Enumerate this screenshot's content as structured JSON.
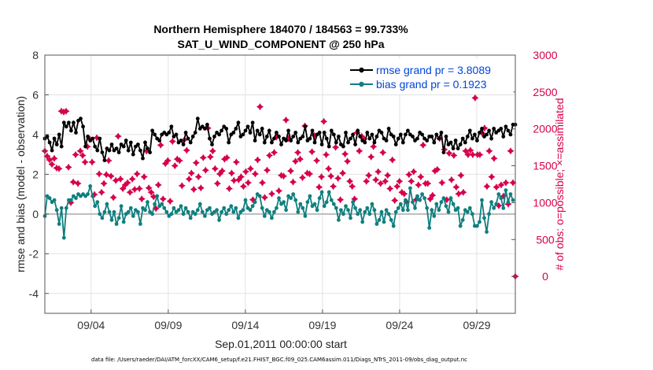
{
  "chart_data": {
    "type": "line",
    "title": "Northern Hemisphere 184070 / 184563 = 99.733%",
    "subtitle": "SAT_U_WIND_COMPONENT @ 250 hPa",
    "xlabel": "Sep.01,2011 00:00:00 start",
    "ylabel": "rmse and bias (model - observation)",
    "y2label": "# of obs: o=possible; ×=assimilated",
    "footnote": "data file: /Users/raeder/DAI/ATM_forcXX/CAM6_setup/f.e21.FHIST_BGC.f09_025.CAM6assim.011/Diags_NTrS_2011-09/obs_diag_output.nc",
    "xlim": [
      0,
      30.5
    ],
    "ylim": [
      -5,
      8
    ],
    "y2lim": [
      -500,
      3000
    ],
    "x_ticks": [
      {
        "value": 3,
        "label": "09/04"
      },
      {
        "value": 8,
        "label": "09/09"
      },
      {
        "value": 13,
        "label": "09/14"
      },
      {
        "value": 18,
        "label": "09/19"
      },
      {
        "value": 23,
        "label": "09/24"
      },
      {
        "value": 28,
        "label": "09/29"
      }
    ],
    "y_ticks": [
      -4,
      -2,
      0,
      2,
      4,
      6,
      8
    ],
    "y2_ticks": [
      0,
      500,
      1000,
      1500,
      2000,
      2500,
      3000
    ],
    "grid": true,
    "legend_position": "top-right",
    "zero_line": true,
    "colors": {
      "rmse": "#000000",
      "bias": "#0f7f7f",
      "obs": "#d6004c",
      "zero_line": "#bbbbbb",
      "grid": "#e2e2e2",
      "legend_text": "#0044dd"
    },
    "series": [
      {
        "name": "rmse grand pr = 3.8089",
        "axis": "left",
        "marker": "circle",
        "values": [
          3.8,
          3.9,
          3.6,
          3.2,
          3.8,
          3.5,
          4.0,
          3.4,
          4.6,
          4.4,
          4.6,
          4.2,
          4.6,
          4.1,
          4.7,
          4.8,
          4.4,
          3.4,
          3.9,
          3.7,
          3.8,
          3.4,
          3.2,
          3.8,
          3.1,
          2.7,
          3.3,
          3.2,
          3.5,
          3.2,
          3.3,
          3.1,
          3.5,
          3.4,
          3.7,
          3.2,
          3.6,
          3.0,
          3.4,
          3.5,
          3.2,
          2.8,
          3.6,
          3.3,
          3.1,
          4.2,
          4.0,
          3.8,
          3.7,
          4.0,
          4.1,
          4.0,
          4.1,
          4.4,
          3.9,
          4.0,
          3.6,
          3.7,
          3.5,
          4.1,
          3.8,
          3.6,
          3.9,
          4.1,
          4.8,
          4.3,
          4.4,
          4.3,
          4.5,
          3.8,
          3.5,
          3.9,
          4.1,
          4.0,
          4.2,
          4.4,
          4.3,
          3.6,
          4.0,
          4.1,
          4.3,
          4.6,
          3.9,
          4.0,
          4.2,
          4.4,
          4.1,
          4.6,
          3.7,
          4.2,
          4.0,
          4.3,
          3.6,
          3.9,
          4.2,
          3.6,
          3.8,
          4.1,
          3.9,
          3.5,
          3.8,
          3.7,
          4.2,
          3.7,
          3.9,
          4.1,
          3.6,
          3.8,
          3.9,
          4.4,
          3.7,
          3.8,
          4.2,
          3.6,
          4.0,
          4.1,
          3.5,
          4.1,
          3.8,
          3.4,
          4.2,
          4.0,
          3.6,
          3.9,
          3.5,
          3.4,
          4.1,
          3.6,
          3.8,
          4.0,
          3.5,
          4.2,
          3.9,
          3.7,
          3.6,
          4.1,
          3.8,
          4.0,
          3.6,
          3.9,
          4.2,
          4.1,
          3.8,
          3.7,
          4.3,
          4.0,
          3.9,
          3.5,
          3.8,
          4.0,
          3.6,
          4.0,
          4.2,
          4.0,
          3.9,
          3.7,
          3.8,
          4.1,
          4.0,
          3.8,
          3.7,
          3.9,
          3.9,
          3.6,
          4.0,
          3.8,
          4.1,
          3.1,
          3.9,
          3.5,
          3.6,
          3.3,
          3.7,
          3.3,
          3.5,
          3.8,
          3.6,
          3.9,
          4.2,
          3.8,
          4.0,
          3.7,
          4.1,
          4.3,
          3.9,
          4.0,
          4.2,
          3.8,
          4.3,
          4.1,
          4.2,
          4.3,
          3.9,
          4.4,
          4.2,
          4.0,
          4.5,
          4.5
        ]
      },
      {
        "name": "bias grand pr = 0.1923",
        "axis": "left",
        "marker": "circle",
        "values": [
          -0.1,
          0.9,
          0.8,
          0.6,
          0.7,
          0.2,
          -0.5,
          0.3,
          -1.2,
          0.3,
          0.7,
          0.7,
          0.9,
          0.8,
          1.0,
          0.9,
          1.0,
          0.9,
          1.0,
          1.4,
          0.9,
          0.4,
          0.6,
          0.0,
          -0.2,
          0.1,
          0.5,
          0.1,
          -0.3,
          0.1,
          -0.5,
          -0.2,
          0.4,
          -0.4,
          0.0,
          0.1,
          0.3,
          -0.1,
          0.2,
          0.1,
          -0.5,
          0.3,
          0.2,
          0.6,
          0.1,
          0.0,
          0.5,
          0.9,
          0.4,
          0.5,
          0.3,
          0.1,
          -0.1,
          0.0,
          0.3,
          0.1,
          0.2,
          0.4,
          0.0,
          0.3,
          0.1,
          -0.2,
          0.1,
          0.0,
          0.2,
          0.5,
          0.1,
          -0.1,
          0.2,
          0.3,
          0.0,
          0.1,
          0.2,
          -0.3,
          0.1,
          0.3,
          0.0,
          0.2,
          0.4,
          0.1,
          0.3,
          -0.2,
          0.1,
          0.2,
          0.7,
          0.3,
          0.2,
          0.4,
          0.6,
          1.0,
          0.9,
          0.3,
          -0.1,
          0.2,
          0.1,
          -0.2,
          0.1,
          0.3,
          0.8,
          0.5,
          0.6,
          0.2,
          0.9,
          0.8,
          1.0,
          0.7,
          0.1,
          0.5,
          0.3,
          -0.1,
          0.6,
          0.9,
          0.4,
          0.5,
          0.2,
          0.8,
          1.1,
          0.4,
          0.6,
          1.1,
          0.7,
          0.5,
          0.3,
          -0.3,
          0.2,
          0.0,
          0.4,
          0.2,
          -0.2,
          0.6,
          0.3,
          0.0,
          0.2,
          -0.4,
          0.1,
          0.3,
          0.0,
          0.5,
          0.2,
          -0.5,
          -0.3,
          0.1,
          -0.4,
          0.2,
          0.0,
          -0.3,
          -0.6,
          0.1,
          0.3,
          0.5,
          0.2,
          0.7,
          0.2,
          1.3,
          0.6,
          0.3,
          0.9,
          0.7,
          1.0,
          0.8,
          0.3,
          -0.7,
          0.2,
          -0.1,
          0.5,
          0.2,
          0.6,
          0.8,
          0.4,
          0.1,
          0.8,
          0.5,
          0.2,
          0.3,
          -0.6,
          -0.3,
          0.2,
          0.1,
          0.3,
          0.0,
          -0.6,
          -0.6,
          -0.4,
          0.7,
          -0.2,
          -0.9,
          0.0,
          0.6,
          0.3,
          0.5,
          1.0,
          0.8,
          0.3,
          1.2,
          0.6,
          1.0,
          0.7
        ]
      },
      {
        "name": "obs count",
        "axis": "right",
        "marker": "star",
        "values": [
          1700,
          1630,
          1580,
          1520,
          1600,
          1470,
          1460,
          2240,
          2230,
          2240,
          1480,
          1000,
          1280,
          1650,
          1260,
          1700,
          1640,
          1550,
          1760,
          1860,
          1550,
          1110,
          1880,
          1390,
          1140,
          1260,
          1380,
          1570,
          1360,
          1070,
          1300,
          1900,
          1320,
          1190,
          1240,
          1270,
          1140,
          1320,
          1180,
          1390,
          1190,
          1050,
          1350,
          1700,
          1200,
          1140,
          1080,
          920,
          1240,
          1780,
          1050,
          1530,
          1570,
          1020,
          1830,
          1500,
          1590,
          1570,
          1230,
          1850,
          1710,
          1320,
          1400,
          1180,
          1540,
          1350,
          1200,
          1610,
          1440,
          2010,
          1620,
          1700,
          1460,
          1260,
          1390,
          1430,
          1590,
          1610,
          1190,
          1400,
          1300,
          1550,
          1310,
          1350,
          1220,
          1420,
          1270,
          1460,
          1040,
          1390,
          1580,
          2300,
          1270,
          1070,
          1440,
          1640,
          1120,
          1680,
          1890,
          1160,
          1370,
          1360,
          2120,
          1870,
          1430,
          1280,
          1560,
          1680,
          1590,
          1340,
          2040,
          1400,
          1390,
          1690,
          1910,
          1570,
          1210,
          1350,
          2100,
          1650,
          1460,
          1360,
          1220,
          1750,
          1330,
          1040,
          1400,
          1660,
          1560,
          1290,
          1220,
          1050,
          1950,
          1700,
          1900,
          1860,
          1290,
          1370,
          1620,
          1760,
          1310,
          1420,
          1260,
          1680,
          1290,
          1370,
          1190,
          1580,
          1030,
          1220,
          1290,
          1140,
          1120,
          1010,
          1380,
          1290,
          1420,
          1040,
          1240,
          1350,
          1780,
          1260,
          1260,
          1050,
          1100,
          1430,
          1450,
          1870,
          1270,
          1720,
          1040,
          1670,
          1310,
          1640,
          1210,
          1120,
          1370,
          1140,
          1700,
          1650,
          1710,
          1650,
          2420,
          1650,
          1650,
          1940,
          2010,
          1220,
          1700,
          1350,
          1600,
          1210,
          960,
          1240,
          1090,
          1270,
          980,
          1700,
          1270,
          0
        ]
      }
    ]
  }
}
